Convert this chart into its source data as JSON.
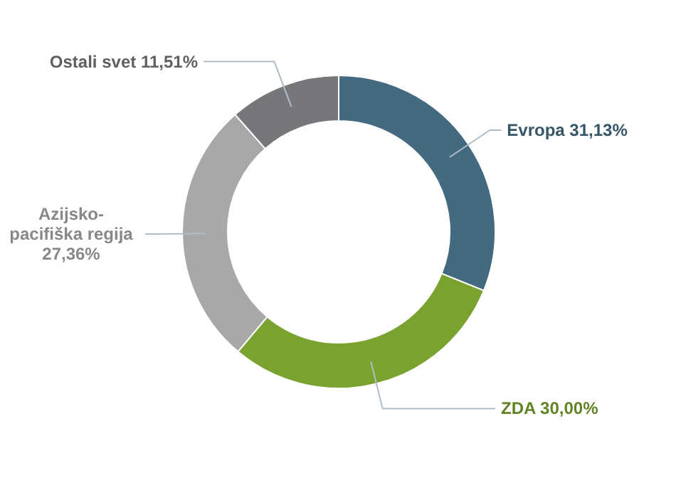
{
  "chart_data": {
    "type": "donut",
    "categories": [
      "Evropa",
      "ZDA",
      "Azijsko-pacifiška regija",
      "Ostali svet"
    ],
    "values": [
      31.13,
      30.0,
      27.36,
      11.51
    ],
    "value_labels": [
      "31,13%",
      "30,00%",
      "27,36%",
      "11,51%"
    ],
    "colors": [
      "#436a80",
      "#7aa22f",
      "#a8a8a8",
      "#77777b"
    ]
  }
}
